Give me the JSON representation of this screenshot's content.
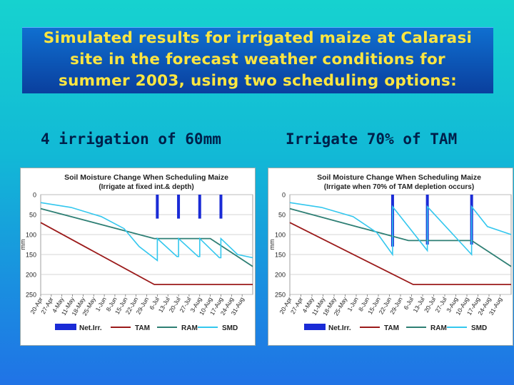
{
  "slide": {
    "title_lines": [
      "Simulated results for irrigated maize at Calarasi",
      "site in the forecast weather conditions for",
      "summer 2003, using two scheduling options:"
    ],
    "option_left": "4 irrigation of 60mm",
    "option_right": "Irrigate 70% of TAM"
  },
  "colors": {
    "title_text": "#ffe640",
    "title_box": "#0a4fb0",
    "net_irr": "#1a2bd6",
    "tam": "#9b1a1a",
    "ram": "#2e7f74",
    "smd": "#33c7ee"
  },
  "chart_data": [
    {
      "type": "line",
      "title": "Soil Moisture Change When Scheduling Maize",
      "subtitle": "(Irrigate at fixed int.& depth)",
      "ylabel": "mm",
      "y_inverted": true,
      "ylim": [
        0,
        250
      ],
      "yticks": [
        0,
        50,
        100,
        150,
        200,
        250
      ],
      "xlim": [
        0,
        140
      ],
      "x_ticks": [
        {
          "x": 0,
          "label": "20-Apr"
        },
        {
          "x": 7,
          "label": "27-Apr"
        },
        {
          "x": 14,
          "label": "4-May"
        },
        {
          "x": 21,
          "label": "11-May"
        },
        {
          "x": 28,
          "label": "18-May"
        },
        {
          "x": 35,
          "label": "25-May"
        },
        {
          "x": 42,
          "label": "1-Jun"
        },
        {
          "x": 49,
          "label": "8-Jun"
        },
        {
          "x": 56,
          "label": "15-Jun"
        },
        {
          "x": 63,
          "label": "22-Jun"
        },
        {
          "x": 70,
          "label": "29-Jun"
        },
        {
          "x": 77,
          "label": "6-Jul"
        },
        {
          "x": 84,
          "label": "13-Jul"
        },
        {
          "x": 91,
          "label": "20-Jul"
        },
        {
          "x": 98,
          "label": "27-Jul"
        },
        {
          "x": 105,
          "label": "3-Aug"
        },
        {
          "x": 112,
          "label": "10-Aug"
        },
        {
          "x": 119,
          "label": "17-Aug"
        },
        {
          "x": 126,
          "label": "24-Aug"
        },
        {
          "x": 133,
          "label": "31-Aug"
        }
      ],
      "legend": [
        "Net.Irr.",
        "TAM",
        "RAM",
        "SMD"
      ],
      "legend_position": "bottom",
      "series": [
        {
          "name": "Net.Irr.",
          "kind": "bars",
          "bars": [
            {
              "x": 77,
              "y": 60
            },
            {
              "x": 91,
              "y": 60
            },
            {
              "x": 105,
              "y": 60
            },
            {
              "x": 119,
              "y": 60
            }
          ]
        },
        {
          "name": "TAM",
          "kind": "line",
          "points": [
            [
              0,
              70
            ],
            [
              75,
              225
            ],
            [
              140,
              225
            ]
          ]
        },
        {
          "name": "RAM",
          "kind": "line",
          "points": [
            [
              0,
              35
            ],
            [
              75,
              110
            ],
            [
              112,
              110
            ],
            [
              140,
              180
            ]
          ]
        },
        {
          "name": "SMD",
          "kind": "line",
          "points": [
            [
              0,
              20
            ],
            [
              20,
              32
            ],
            [
              40,
              55
            ],
            [
              55,
              85
            ],
            [
              65,
              130
            ],
            [
              77,
              165
            ],
            [
              77,
              110
            ],
            [
              90,
              155
            ],
            [
              91,
              155
            ],
            [
              91,
              110
            ],
            [
              104,
              155
            ],
            [
              105,
              155
            ],
            [
              105,
              110
            ],
            [
              118,
              158
            ],
            [
              119,
              158
            ],
            [
              119,
              110
            ],
            [
              130,
              150
            ],
            [
              140,
              158
            ]
          ]
        }
      ]
    },
    {
      "type": "line",
      "title": "Soil Moisture Change When Scheduling Maize",
      "subtitle": "(Irrigate when 70% of TAM depletion occurs)",
      "ylabel": "mm",
      "y_inverted": true,
      "ylim": [
        0,
        250
      ],
      "yticks": [
        0,
        50,
        100,
        150,
        200,
        250
      ],
      "xlim": [
        0,
        140
      ],
      "x_ticks": [
        {
          "x": 0,
          "label": "20-Apr"
        },
        {
          "x": 7,
          "label": "27-Apr"
        },
        {
          "x": 14,
          "label": "4-May"
        },
        {
          "x": 21,
          "label": "11-May"
        },
        {
          "x": 28,
          "label": "18-May"
        },
        {
          "x": 35,
          "label": "25-May"
        },
        {
          "x": 42,
          "label": "1-Jun"
        },
        {
          "x": 49,
          "label": "8-Jun"
        },
        {
          "x": 56,
          "label": "15-Jun"
        },
        {
          "x": 63,
          "label": "22-Jun"
        },
        {
          "x": 70,
          "label": "29-Jun"
        },
        {
          "x": 77,
          "label": "6-Jul"
        },
        {
          "x": 84,
          "label": "13-Jul"
        },
        {
          "x": 91,
          "label": "20-Jul"
        },
        {
          "x": 98,
          "label": "27-Jul"
        },
        {
          "x": 105,
          "label": "3-Aug"
        },
        {
          "x": 112,
          "label": "10-Aug"
        },
        {
          "x": 119,
          "label": "17-Aug"
        },
        {
          "x": 126,
          "label": "24-Aug"
        },
        {
          "x": 133,
          "label": "31-Aug"
        }
      ],
      "legend": [
        "Net.Irr.",
        "TAM",
        "RAM",
        "SMD"
      ],
      "legend_position": "bottom",
      "series": [
        {
          "name": "Net.Irr.",
          "kind": "bars",
          "bars": [
            {
              "x": 65,
              "y": 130
            },
            {
              "x": 87,
              "y": 125
            },
            {
              "x": 115,
              "y": 125
            }
          ]
        },
        {
          "name": "TAM",
          "kind": "line",
          "points": [
            [
              0,
              70
            ],
            [
              78,
              225
            ],
            [
              140,
              225
            ]
          ]
        },
        {
          "name": "RAM",
          "kind": "line",
          "points": [
            [
              0,
              35
            ],
            [
              75,
              115
            ],
            [
              115,
              115
            ],
            [
              140,
              180
            ]
          ]
        },
        {
          "name": "SMD",
          "kind": "line",
          "points": [
            [
              0,
              20
            ],
            [
              20,
              32
            ],
            [
              40,
              55
            ],
            [
              55,
              95
            ],
            [
              65,
              150
            ],
            [
              65,
              30
            ],
            [
              87,
              140
            ],
            [
              87,
              30
            ],
            [
              115,
              150
            ],
            [
              115,
              30
            ],
            [
              125,
              80
            ],
            [
              140,
              100
            ]
          ]
        }
      ]
    }
  ]
}
